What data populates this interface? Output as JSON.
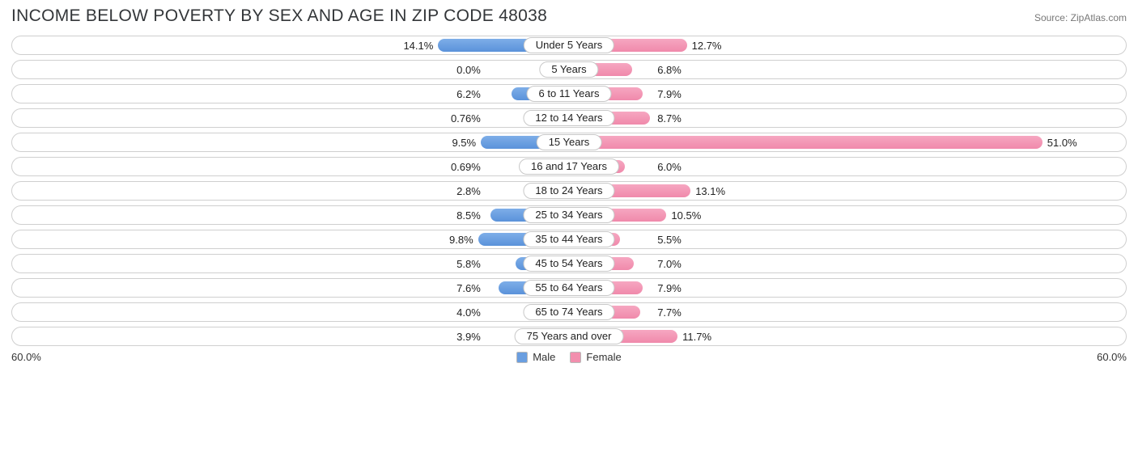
{
  "chart": {
    "type": "diverging-bar",
    "title": "INCOME BELOW POVERTY BY SEX AND AGE IN ZIP CODE 48038",
    "source": "Source: ZipAtlas.com",
    "max_pct": 60.0,
    "axis_left_label": "60.0%",
    "axis_right_label": "60.0%",
    "track_border_color": "#cfcfcf",
    "background_color": "#ffffff",
    "title_color": "#333639",
    "title_fontsize": 21,
    "label_fontsize": 13,
    "male_color": "#6a9ee0",
    "male_gradient_top": "#7eaee8",
    "male_gradient_bottom": "#5a92da",
    "female_color": "#f28fae",
    "female_gradient_top": "#f6a7c1",
    "female_gradient_bottom": "#f089ab",
    "legend": {
      "male": "Male",
      "female": "Female"
    },
    "rows": [
      {
        "label": "Under 5 Years",
        "male": 14.1,
        "male_txt": "14.1%",
        "female": 12.7,
        "female_txt": "12.7%"
      },
      {
        "label": "5 Years",
        "male": 0.0,
        "male_txt": "0.0%",
        "female": 6.8,
        "female_txt": "6.8%"
      },
      {
        "label": "6 to 11 Years",
        "male": 6.2,
        "male_txt": "6.2%",
        "female": 7.9,
        "female_txt": "7.9%"
      },
      {
        "label": "12 to 14 Years",
        "male": 0.76,
        "male_txt": "0.76%",
        "female": 8.7,
        "female_txt": "8.7%"
      },
      {
        "label": "15 Years",
        "male": 9.5,
        "male_txt": "9.5%",
        "female": 51.0,
        "female_txt": "51.0%"
      },
      {
        "label": "16 and 17 Years",
        "male": 0.69,
        "male_txt": "0.69%",
        "female": 6.0,
        "female_txt": "6.0%"
      },
      {
        "label": "18 to 24 Years",
        "male": 2.8,
        "male_txt": "2.8%",
        "female": 13.1,
        "female_txt": "13.1%"
      },
      {
        "label": "25 to 34 Years",
        "male": 8.5,
        "male_txt": "8.5%",
        "female": 10.5,
        "female_txt": "10.5%"
      },
      {
        "label": "35 to 44 Years",
        "male": 9.8,
        "male_txt": "9.8%",
        "female": 5.5,
        "female_txt": "5.5%"
      },
      {
        "label": "45 to 54 Years",
        "male": 5.8,
        "male_txt": "5.8%",
        "female": 7.0,
        "female_txt": "7.0%"
      },
      {
        "label": "55 to 64 Years",
        "male": 7.6,
        "male_txt": "7.6%",
        "female": 7.9,
        "female_txt": "7.9%"
      },
      {
        "label": "65 to 74 Years",
        "male": 4.0,
        "male_txt": "4.0%",
        "female": 7.7,
        "female_txt": "7.7%"
      },
      {
        "label": "75 Years and over",
        "male": 3.9,
        "male_txt": "3.9%",
        "female": 11.7,
        "female_txt": "11.7%"
      }
    ]
  }
}
